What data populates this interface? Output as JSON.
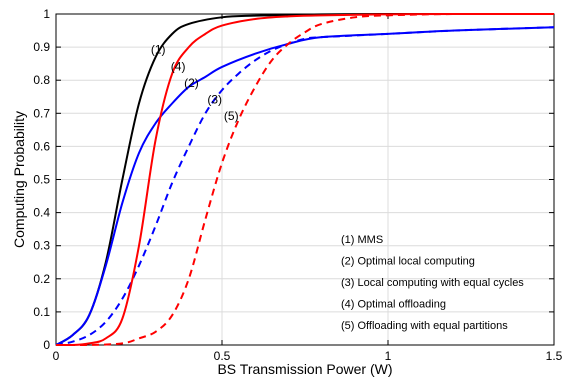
{
  "chart_data": {
    "type": "line",
    "title": "",
    "xlabel": "BS Transmission Power (W)",
    "ylabel": "Computing Probability",
    "xlim": [
      0,
      1.5
    ],
    "ylim": [
      0,
      1
    ],
    "xticks": [
      "0",
      "0.5",
      "1",
      "1.5"
    ],
    "yticks": [
      "0",
      "0.1",
      "0.2",
      "0.3",
      "0.4",
      "0.5",
      "0.6",
      "0.7",
      "0.8",
      "0.9",
      "1"
    ],
    "grid": true,
    "legend_placement": "bottom-right",
    "legend": [
      "(1) MMS",
      "(2) Optimal local computing",
      "(3) Local computing with equal cycles",
      "(4) Optimal offloading",
      "(5) Offloading with equal partitions"
    ],
    "series": [
      {
        "label": "(1)",
        "color": "#000000",
        "dash": false,
        "x": [
          0,
          0.05,
          0.1,
          0.15,
          0.2,
          0.25,
          0.3,
          0.35,
          0.4,
          0.5,
          0.6,
          0.8,
          1.0,
          1.2,
          1.5
        ],
        "y": [
          0,
          0.03,
          0.09,
          0.25,
          0.5,
          0.73,
          0.87,
          0.94,
          0.97,
          0.99,
          0.995,
          0.999,
          1.0,
          1.0,
          1.0
        ]
      },
      {
        "label": "(2)",
        "color": "#0000ff",
        "dash": false,
        "x": [
          0,
          0.05,
          0.1,
          0.15,
          0.2,
          0.25,
          0.3,
          0.35,
          0.4,
          0.45,
          0.5,
          0.6,
          0.7,
          0.8,
          1.0,
          1.2,
          1.5
        ],
        "y": [
          0,
          0.03,
          0.09,
          0.24,
          0.43,
          0.58,
          0.67,
          0.73,
          0.78,
          0.81,
          0.84,
          0.88,
          0.91,
          0.93,
          0.94,
          0.95,
          0.96
        ]
      },
      {
        "label": "(3)",
        "color": "#0000ff",
        "dash": true,
        "x": [
          0,
          0.05,
          0.1,
          0.15,
          0.2,
          0.25,
          0.3,
          0.35,
          0.4,
          0.45,
          0.5,
          0.55,
          0.6,
          0.65,
          0.7,
          0.75,
          0.8,
          1.0,
          1.2,
          1.5
        ],
        "y": [
          0,
          0.01,
          0.03,
          0.07,
          0.14,
          0.24,
          0.36,
          0.49,
          0.6,
          0.7,
          0.77,
          0.82,
          0.86,
          0.89,
          0.91,
          0.925,
          0.93,
          0.94,
          0.95,
          0.96
        ]
      },
      {
        "label": "(4)",
        "color": "#ff0000",
        "dash": false,
        "x": [
          0,
          0.05,
          0.1,
          0.15,
          0.2,
          0.25,
          0.3,
          0.35,
          0.4,
          0.45,
          0.5,
          0.6,
          0.7,
          0.8,
          1.0,
          1.2,
          1.5
        ],
        "y": [
          0,
          0,
          0.005,
          0.02,
          0.08,
          0.3,
          0.62,
          0.82,
          0.9,
          0.94,
          0.965,
          0.985,
          0.993,
          0.996,
          0.999,
          1.0,
          1.0
        ]
      },
      {
        "label": "(5)",
        "color": "#ff0000",
        "dash": true,
        "x": [
          0,
          0.1,
          0.2,
          0.25,
          0.3,
          0.35,
          0.4,
          0.45,
          0.5,
          0.55,
          0.6,
          0.65,
          0.7,
          0.75,
          0.8,
          0.9,
          1.0,
          1.2,
          1.5
        ],
        "y": [
          0,
          0,
          0.005,
          0.02,
          0.04,
          0.09,
          0.2,
          0.38,
          0.55,
          0.68,
          0.78,
          0.86,
          0.91,
          0.945,
          0.97,
          0.99,
          0.996,
          1.0,
          1.0
        ]
      }
    ],
    "curve_labels": [
      {
        "text": "(1)",
        "x": 0.33,
        "y": 0.88
      },
      {
        "text": "(4)",
        "x": 0.39,
        "y": 0.83
      },
      {
        "text": "(2)",
        "x": 0.43,
        "y": 0.78
      },
      {
        "text": "(3)",
        "x": 0.5,
        "y": 0.73
      },
      {
        "text": "(5)",
        "x": 0.55,
        "y": 0.68
      }
    ]
  }
}
